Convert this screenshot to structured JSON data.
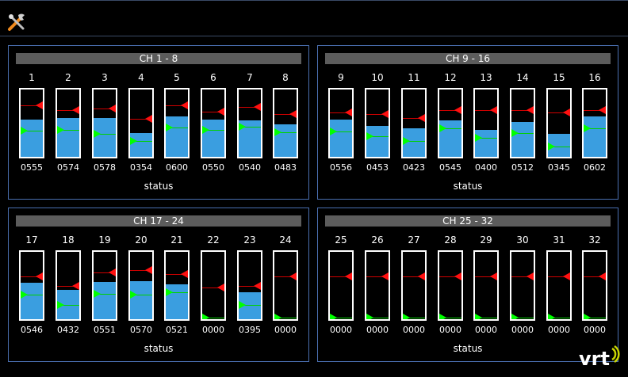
{
  "panels": [
    {
      "title": "CH 1 - 8",
      "status": "status",
      "channels": [
        {
          "ch": "1",
          "value": "0555",
          "level": 0.555,
          "green": 0.39,
          "red": 0.76
        },
        {
          "ch": "2",
          "value": "0574",
          "level": 0.574,
          "green": 0.4,
          "red": 0.7
        },
        {
          "ch": "3",
          "value": "0578",
          "level": 0.578,
          "green": 0.34,
          "red": 0.72
        },
        {
          "ch": "4",
          "value": "0354",
          "level": 0.354,
          "green": 0.23,
          "red": 0.56
        },
        {
          "ch": "5",
          "value": "0600",
          "level": 0.6,
          "green": 0.44,
          "red": 0.76
        },
        {
          "ch": "6",
          "value": "0550",
          "level": 0.55,
          "green": 0.4,
          "red": 0.67
        },
        {
          "ch": "7",
          "value": "0540",
          "level": 0.54,
          "green": 0.45,
          "red": 0.74
        },
        {
          "ch": "8",
          "value": "0483",
          "level": 0.483,
          "green": 0.36,
          "red": 0.64
        }
      ]
    },
    {
      "title": "CH 9 - 16",
      "status": "status",
      "channels": [
        {
          "ch": "9",
          "value": "0556",
          "level": 0.556,
          "green": 0.38,
          "red": 0.66
        },
        {
          "ch": "10",
          "value": "0453",
          "level": 0.453,
          "green": 0.31,
          "red": 0.64
        },
        {
          "ch": "11",
          "value": "0423",
          "level": 0.423,
          "green": 0.24,
          "red": 0.58
        },
        {
          "ch": "12",
          "value": "0545",
          "level": 0.545,
          "green": 0.42,
          "red": 0.7
        },
        {
          "ch": "13",
          "value": "0400",
          "level": 0.4,
          "green": 0.28,
          "red": 0.7
        },
        {
          "ch": "14",
          "value": "0512",
          "level": 0.512,
          "green": 0.35,
          "red": 0.69
        },
        {
          "ch": "15",
          "value": "0345",
          "level": 0.345,
          "green": 0.15,
          "red": 0.66
        },
        {
          "ch": "16",
          "value": "0602",
          "level": 0.602,
          "green": 0.42,
          "red": 0.7
        }
      ]
    },
    {
      "title": "CH 17 - 24",
      "status": "status",
      "channels": [
        {
          "ch": "17",
          "value": "0546",
          "level": 0.546,
          "green": 0.36,
          "red": 0.64
        },
        {
          "ch": "18",
          "value": "0432",
          "level": 0.432,
          "green": 0.21,
          "red": 0.49
        },
        {
          "ch": "19",
          "value": "0551",
          "level": 0.551,
          "green": 0.38,
          "red": 0.7
        },
        {
          "ch": "20",
          "value": "0570",
          "level": 0.57,
          "green": 0.36,
          "red": 0.73
        },
        {
          "ch": "21",
          "value": "0521",
          "level": 0.521,
          "green": 0.4,
          "red": 0.67
        },
        {
          "ch": "22",
          "value": "0000",
          "level": 0.0,
          "green": 0.02,
          "red": 0.47
        },
        {
          "ch": "23",
          "value": "0395",
          "level": 0.395,
          "green": 0.21,
          "red": 0.49
        },
        {
          "ch": "24",
          "value": "0000",
          "level": 0.0,
          "green": 0.02,
          "red": 0.63
        }
      ]
    },
    {
      "title": "CH 25 - 32",
      "status": "status",
      "channels": [
        {
          "ch": "25",
          "value": "0000",
          "level": 0.0,
          "green": 0.02,
          "red": 0.63
        },
        {
          "ch": "26",
          "value": "0000",
          "level": 0.0,
          "green": 0.02,
          "red": 0.63
        },
        {
          "ch": "27",
          "value": "0000",
          "level": 0.0,
          "green": 0.02,
          "red": 0.63
        },
        {
          "ch": "28",
          "value": "0000",
          "level": 0.0,
          "green": 0.02,
          "red": 0.63
        },
        {
          "ch": "29",
          "value": "0000",
          "level": 0.0,
          "green": 0.02,
          "red": 0.63
        },
        {
          "ch": "30",
          "value": "0000",
          "level": 0.0,
          "green": 0.02,
          "red": 0.63
        },
        {
          "ch": "31",
          "value": "0000",
          "level": 0.0,
          "green": 0.02,
          "red": 0.63
        },
        {
          "ch": "32",
          "value": "0000",
          "level": 0.0,
          "green": 0.02,
          "red": 0.63
        }
      ]
    }
  ],
  "icons": {
    "tools": "tools-icon",
    "logo": "vrt-logo-icon"
  },
  "colors": {
    "panel_border": "#4a6fb0",
    "fill": "#3a9ee0",
    "green_marker": "#00ff00",
    "red_marker": "#ff1010",
    "title_bg": "#5c5c5c"
  },
  "logo_text": "vrt"
}
